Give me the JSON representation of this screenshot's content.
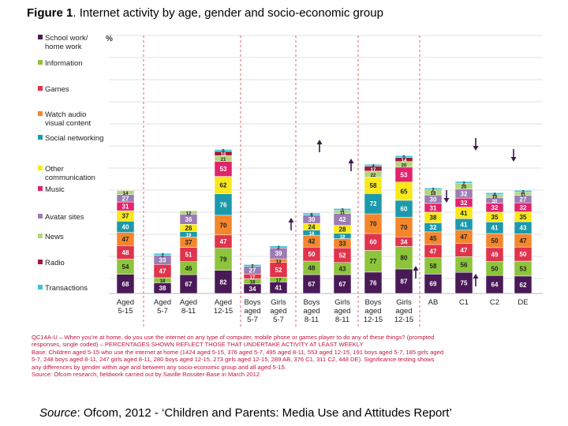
{
  "title": {
    "figure_label": "Figure 1",
    "text": ". Internet activity by age, gender and socio-economic group"
  },
  "source": {
    "label": "Source",
    "text": ": Ofcom, 2012 - ‘Children and Parents: Media Use and Attitudes Report’"
  },
  "notes": [
    "QC14A-U – When you’re at home, do you use the internet on any type of computer, mobile phone or games player to do any of these things? (prompted",
    "responses, single coded) – PERCENTAGES SHOWN REFLECT THOSE THAT UNDERTAKE ACTIVITY AT LEAST WEEKLY",
    "Base: Children aged 5-15 who use the internet at home (1424 aged 5-15, 376 aged 5-7, 495 aged 8-11, 553 aged 12-15, 191 boys aged 5-7, 185 girls aged",
    "5-7, 248 boys aged 8-11, 247 girls aged 8-11, 280 boys aged 12-15, 273 girls aged 12-15, 289 AB, 376 C1, 311 C2, 448 DE). Significance testing shows",
    "any differences by gender within age and between any socio-economic group and all aged 5-15.",
    "Source: Ofcom research, fieldwork carried out by Saville Rossiter-Base in March 2012"
  ],
  "chart_data": {
    "type": "bar",
    "stacked": true,
    "ylabel": "%",
    "categories": [
      "Aged 5-15",
      "Aged 5-7",
      "Aged 8-11",
      "Aged 12-15",
      "Boys aged 5-7",
      "Girls aged 5-7",
      "Boys aged 8-11",
      "Girls aged 8-11",
      "Boys aged 12-15",
      "Girls aged 12-15",
      "AB",
      "C1",
      "C2",
      "DE"
    ],
    "series": [
      {
        "name": "School work/ home work",
        "color": "#4a1a58",
        "values": [
          68,
          38,
          67,
          82,
          34,
          41,
          67,
          67,
          76,
          87,
          69,
          75,
          64,
          62
        ]
      },
      {
        "name": "Information",
        "color": "#8cc43c",
        "values": [
          54,
          18,
          46,
          79,
          18,
          17,
          48,
          43,
          77,
          80,
          58,
          56,
          50,
          53
        ]
      },
      {
        "name": "Games",
        "color": "#e0344c",
        "values": [
          48,
          47,
          51,
          47,
          17,
          52,
          50,
          52,
          60,
          34,
          47,
          47,
          49,
          50
        ]
      },
      {
        "name": "Watch audio visual content",
        "color": "#f4862c",
        "values": [
          47,
          null,
          37,
          70,
          null,
          13,
          42,
          33,
          70,
          70,
          45,
          47,
          50,
          47
        ]
      },
      {
        "name": "Social networking",
        "color": "#1c9aac",
        "values": [
          40,
          null,
          19,
          76,
          null,
          null,
          18,
          19,
          72,
          60,
          32,
          41,
          41,
          43
        ]
      },
      {
        "name": "Other communication",
        "color": "#f8e81c",
        "values": [
          37,
          null,
          26,
          62,
          null,
          null,
          24,
          28,
          58,
          65,
          38,
          41,
          35,
          35
        ]
      },
      {
        "name": "Music",
        "color": "#e0246c",
        "values": [
          31,
          null,
          null,
          53,
          null,
          null,
          null,
          null,
          null,
          53,
          31,
          32,
          32,
          32
        ]
      },
      {
        "name": "Avatar sites",
        "color": "#9c7cb4",
        "values": [
          27,
          33,
          36,
          null,
          27,
          39,
          30,
          42,
          null,
          null,
          30,
          32,
          20,
          27
        ]
      },
      {
        "name": "News",
        "color": "#b8d47c",
        "values": [
          14,
          null,
          12,
          21,
          null,
          null,
          null,
          11,
          22,
          20,
          18,
          20,
          10,
          11
        ]
      },
      {
        "name": "Radio",
        "color": "#a01c3c",
        "values": [
          null,
          null,
          null,
          15,
          null,
          null,
          null,
          null,
          17,
          14,
          null,
          null,
          null,
          null
        ]
      },
      {
        "name": "Transactions",
        "color": "#3cc4d8",
        "values": [
          null,
          2,
          null,
          6,
          2,
          2,
          6,
          3,
          4,
          5,
          2,
          2,
          4,
          2
        ]
      }
    ],
    "arrows": [
      {
        "category": "Girls aged 5-7",
        "direction": "up"
      },
      {
        "category": "Boys aged 8-11",
        "direction": "up"
      },
      {
        "category": "Girls aged 8-11",
        "direction": "up"
      },
      {
        "category": "Girls aged 12-15",
        "direction": "up"
      },
      {
        "category": "AB",
        "direction": "down"
      },
      {
        "category": "C1",
        "direction": "up"
      },
      {
        "category": "C1",
        "direction": "down"
      },
      {
        "category": "DE",
        "direction": "down"
      }
    ],
    "grid": true,
    "legend_position": "left"
  }
}
